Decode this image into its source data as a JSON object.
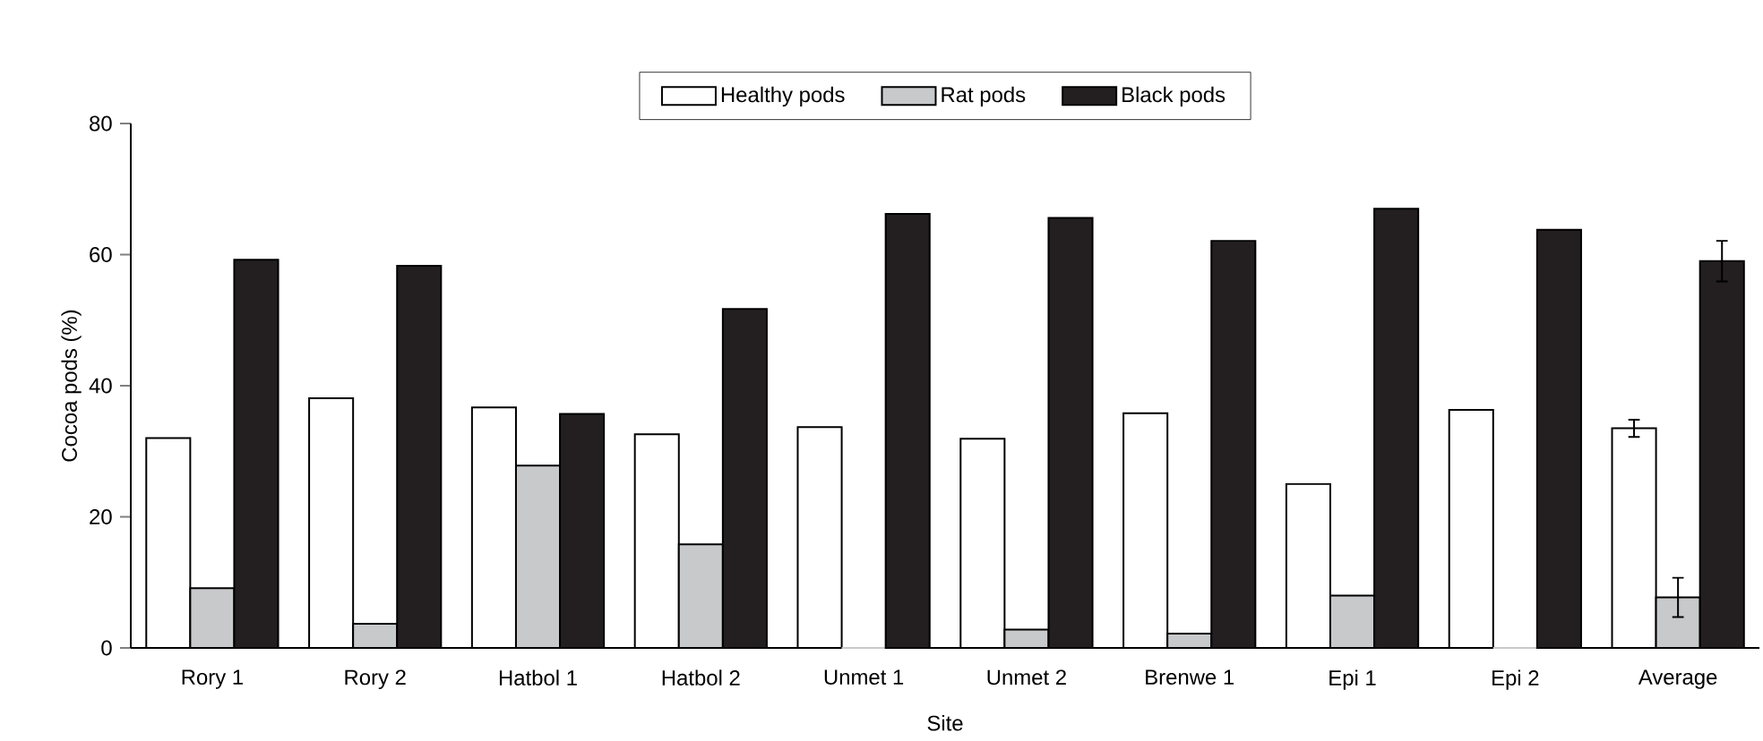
{
  "chart_data": {
    "type": "bar",
    "xlabel": "Site",
    "ylabel": "Cocoa pods (%)",
    "categories": [
      "Rory 1",
      "Rory 2",
      "Hatbol 1",
      "Hatbol 2",
      "Unmet 1",
      "Unmet 2",
      "Brenwe 1",
      "Epi 1",
      "Epi 2",
      "Average"
    ],
    "series": [
      {
        "name": "Healthy pods",
        "color": "#ffffff",
        "values": [
          32.0,
          38.1,
          36.7,
          32.6,
          33.7,
          31.9,
          35.8,
          25.0,
          36.3,
          33.5
        ],
        "errors": [
          null,
          null,
          null,
          null,
          null,
          null,
          null,
          null,
          null,
          1.3
        ]
      },
      {
        "name": "Rat pods",
        "color": "#c8c9cb",
        "values": [
          9.1,
          3.7,
          27.8,
          15.8,
          0,
          2.8,
          2.2,
          8.0,
          0,
          7.7
        ],
        "errors": [
          null,
          null,
          null,
          null,
          null,
          null,
          null,
          null,
          null,
          3.0
        ]
      },
      {
        "name": "Black pods",
        "color": "#231f20",
        "values": [
          59.2,
          58.3,
          35.7,
          51.7,
          66.2,
          65.6,
          62.1,
          67.0,
          63.8,
          59.0
        ],
        "errors": [
          null,
          null,
          null,
          null,
          null,
          null,
          null,
          null,
          null,
          3.1
        ]
      }
    ],
    "ylim": [
      0,
      80
    ],
    "yticks": [
      0,
      20,
      40,
      60,
      80
    ],
    "legend": "top"
  }
}
